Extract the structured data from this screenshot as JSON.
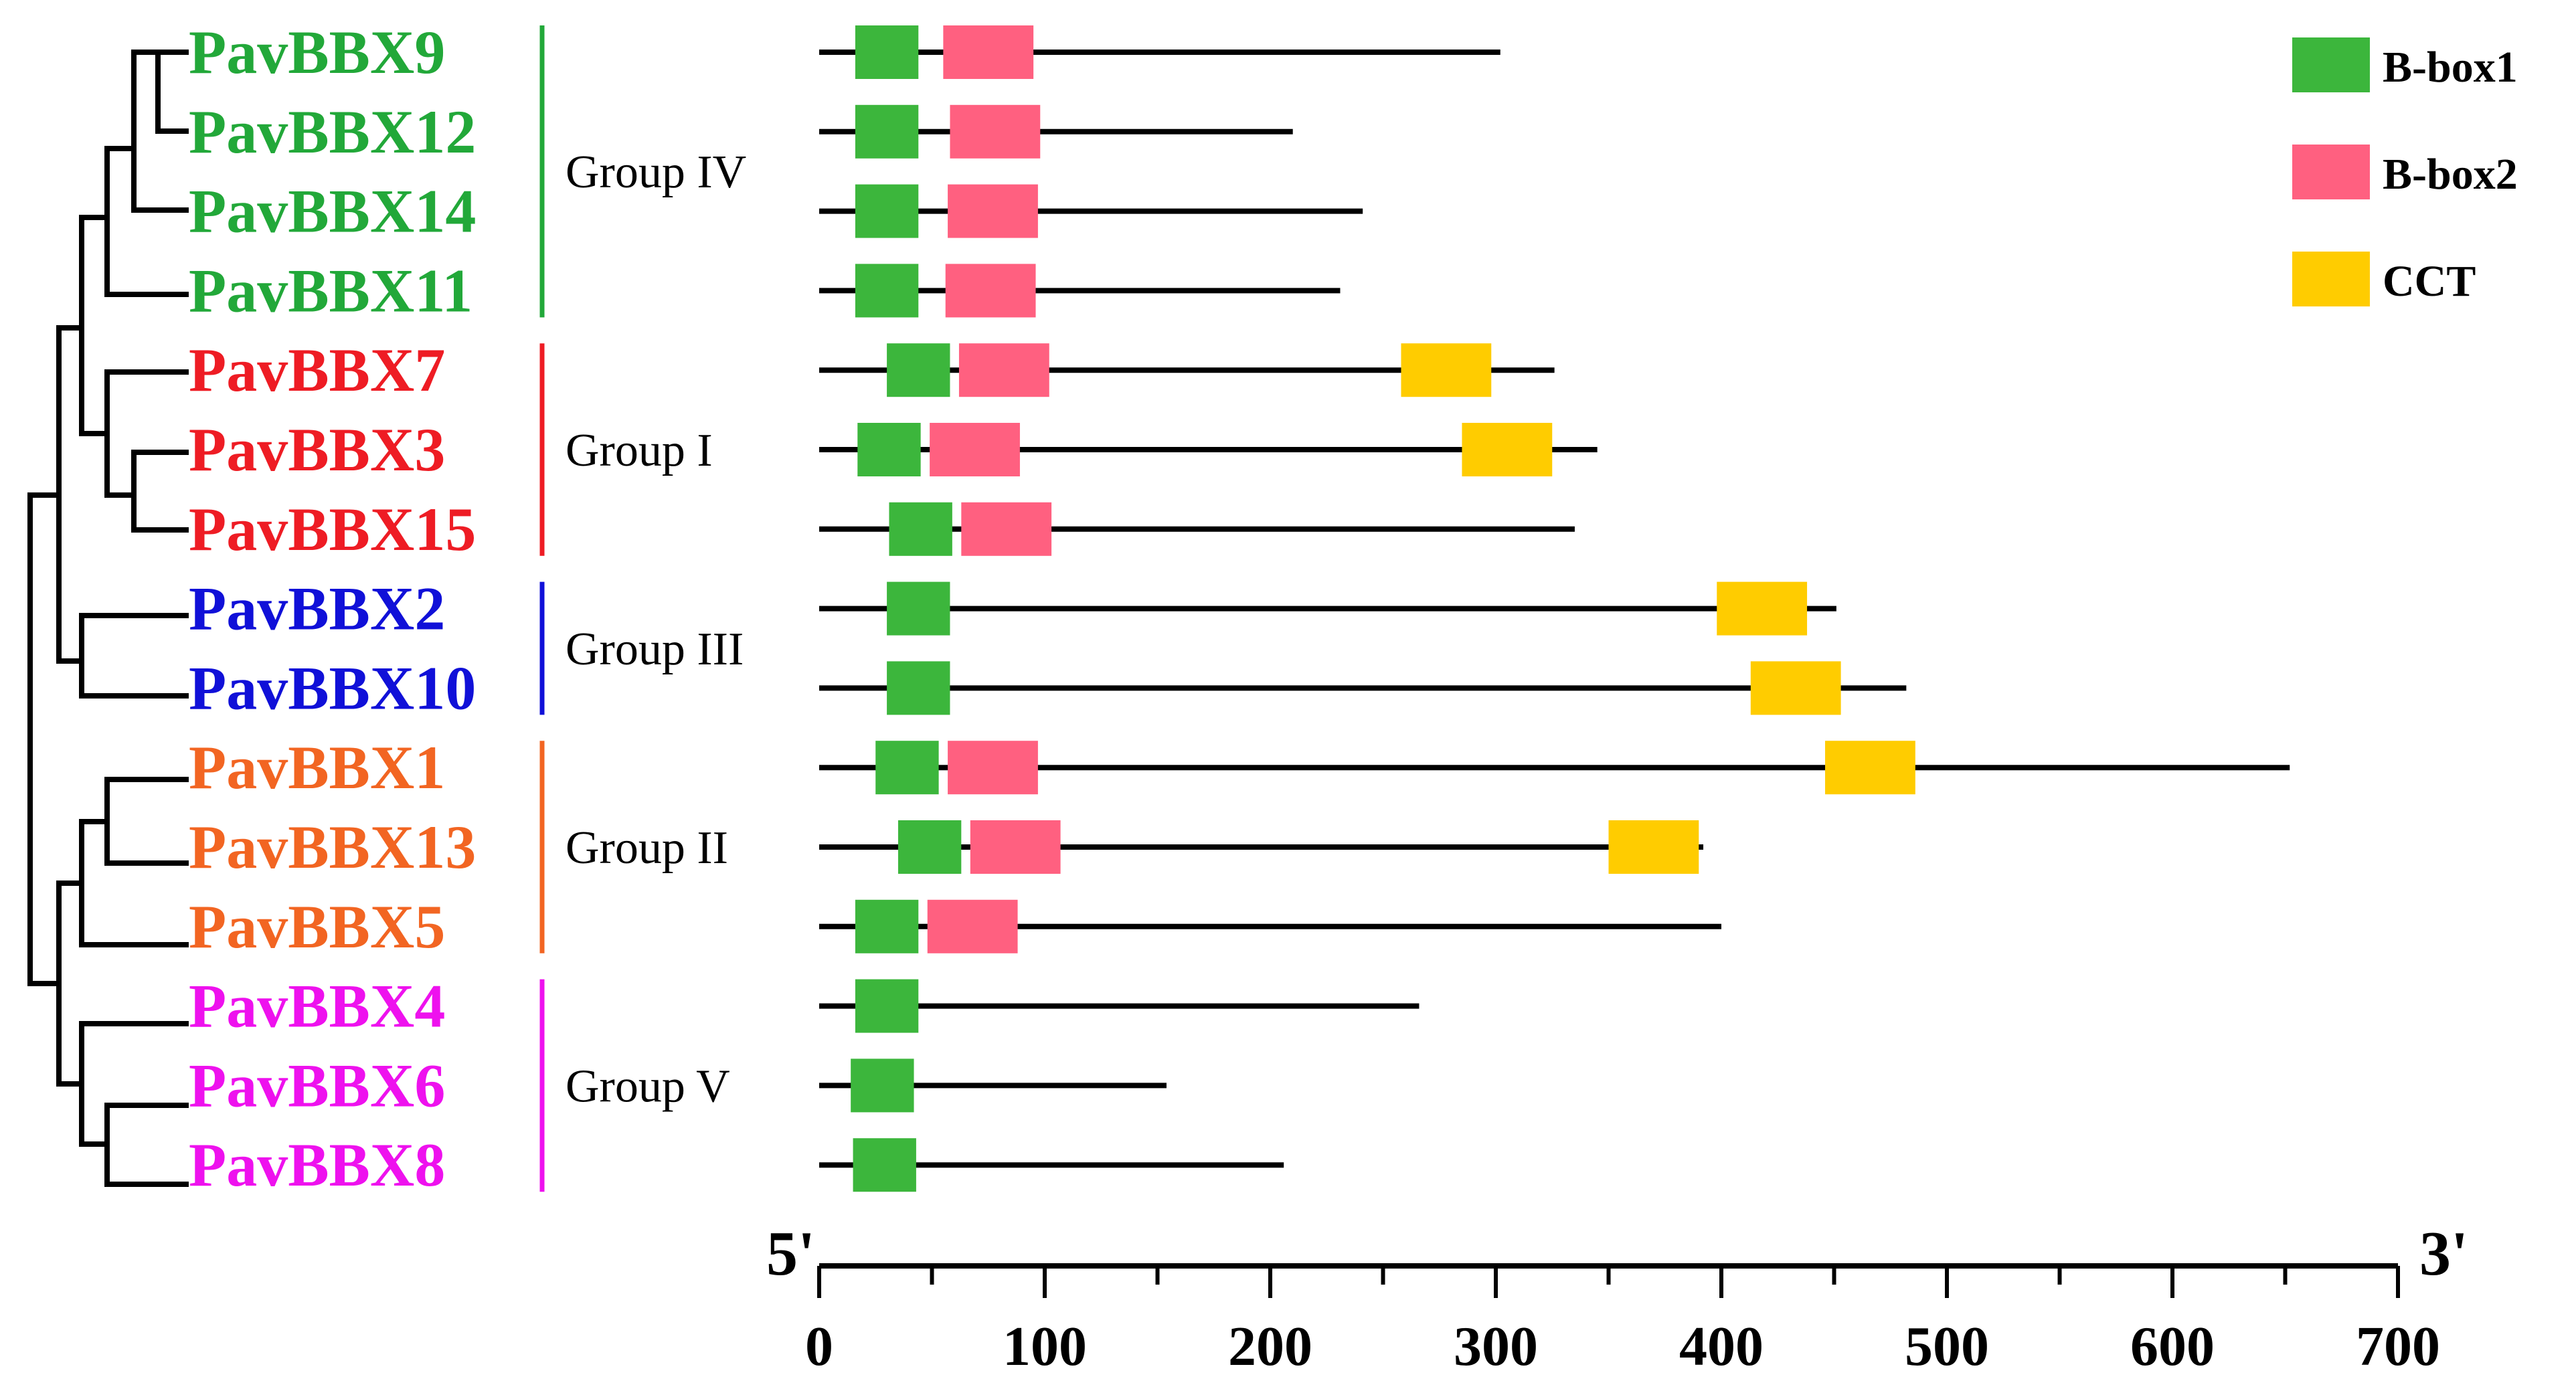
{
  "figure": {
    "title": "",
    "background": "#ffffff"
  },
  "groups": [
    {
      "name": "Group IV",
      "color": "#22a839",
      "members": [
        "PavBBX9",
        "PavBBX12",
        "PavBBX14",
        "PavBBX11"
      ]
    },
    {
      "name": "Group I",
      "color": "#ee1c24",
      "members": [
        "PavBBX7",
        "PavBBX3",
        "PavBBX15"
      ]
    },
    {
      "name": "Group III",
      "color": "#1010d8",
      "members": [
        "PavBBX2",
        "PavBBX10"
      ]
    },
    {
      "name": "Group II",
      "color": "#f26522",
      "members": [
        "PavBBX1",
        "PavBBX13",
        "PavBBX5"
      ]
    },
    {
      "name": "Group V",
      "color": "#ee11ee",
      "members": [
        "PavBBX4",
        "PavBBX6",
        "PavBBX8"
      ]
    }
  ],
  "legend": [
    {
      "label": "B-box1",
      "color": "#3cb63c"
    },
    {
      "label": "B-box2",
      "color": "#ff6080"
    },
    {
      "label": "CCT",
      "color": "#ffcc00"
    }
  ],
  "axis": {
    "start_label": "5'",
    "end_label": "3'",
    "min": 0,
    "max": 700,
    "major_ticks": [
      0,
      100,
      200,
      300,
      400,
      500,
      600,
      700
    ],
    "minor_step": 50
  },
  "chart_data": {
    "type": "gene-structure",
    "xlabel": "",
    "xlim": [
      0,
      700
    ],
    "domain_types": [
      "B-box1",
      "B-box2",
      "CCT"
    ],
    "proteins": [
      {
        "name": "PavBBX9",
        "group": "Group IV",
        "length": 302,
        "domains": [
          {
            "type": "B-box1",
            "start": 16,
            "end": 44
          },
          {
            "type": "B-box2",
            "start": 55,
            "end": 95
          }
        ]
      },
      {
        "name": "PavBBX12",
        "group": "Group IV",
        "length": 210,
        "domains": [
          {
            "type": "B-box1",
            "start": 16,
            "end": 44
          },
          {
            "type": "B-box2",
            "start": 58,
            "end": 98
          }
        ]
      },
      {
        "name": "PavBBX14",
        "group": "Group IV",
        "length": 241,
        "domains": [
          {
            "type": "B-box1",
            "start": 16,
            "end": 44
          },
          {
            "type": "B-box2",
            "start": 57,
            "end": 97
          }
        ]
      },
      {
        "name": "PavBBX11",
        "group": "Group IV",
        "length": 231,
        "domains": [
          {
            "type": "B-box1",
            "start": 16,
            "end": 44
          },
          {
            "type": "B-box2",
            "start": 56,
            "end": 96
          }
        ]
      },
      {
        "name": "PavBBX7",
        "group": "Group I",
        "length": 326,
        "domains": [
          {
            "type": "B-box1",
            "start": 30,
            "end": 58
          },
          {
            "type": "B-box2",
            "start": 62,
            "end": 102
          },
          {
            "type": "CCT",
            "start": 258,
            "end": 298
          }
        ]
      },
      {
        "name": "PavBBX3",
        "group": "Group I",
        "length": 345,
        "domains": [
          {
            "type": "B-box1",
            "start": 17,
            "end": 45
          },
          {
            "type": "B-box2",
            "start": 49,
            "end": 89
          },
          {
            "type": "CCT",
            "start": 285,
            "end": 325
          }
        ]
      },
      {
        "name": "PavBBX15",
        "group": "Group I",
        "length": 335,
        "domains": [
          {
            "type": "B-box1",
            "start": 31,
            "end": 59
          },
          {
            "type": "B-box2",
            "start": 63,
            "end": 103
          }
        ]
      },
      {
        "name": "PavBBX2",
        "group": "Group III",
        "length": 451,
        "domains": [
          {
            "type": "B-box1",
            "start": 30,
            "end": 58
          },
          {
            "type": "CCT",
            "start": 398,
            "end": 438
          }
        ]
      },
      {
        "name": "PavBBX10",
        "group": "Group III",
        "length": 482,
        "domains": [
          {
            "type": "B-box1",
            "start": 30,
            "end": 58
          },
          {
            "type": "CCT",
            "start": 413,
            "end": 453
          }
        ]
      },
      {
        "name": "PavBBX1",
        "group": "Group II",
        "length": 652,
        "domains": [
          {
            "type": "B-box1",
            "start": 25,
            "end": 53
          },
          {
            "type": "B-box2",
            "start": 57,
            "end": 97
          },
          {
            "type": "CCT",
            "start": 446,
            "end": 486
          }
        ]
      },
      {
        "name": "PavBBX13",
        "group": "Group II",
        "length": 392,
        "domains": [
          {
            "type": "B-box1",
            "start": 35,
            "end": 63
          },
          {
            "type": "B-box2",
            "start": 67,
            "end": 107
          },
          {
            "type": "CCT",
            "start": 350,
            "end": 390
          }
        ]
      },
      {
        "name": "PavBBX5",
        "group": "Group II",
        "length": 400,
        "domains": [
          {
            "type": "B-box1",
            "start": 16,
            "end": 44
          },
          {
            "type": "B-box2",
            "start": 48,
            "end": 88
          }
        ]
      },
      {
        "name": "PavBBX4",
        "group": "Group V",
        "length": 266,
        "domains": [
          {
            "type": "B-box1",
            "start": 16,
            "end": 44
          }
        ]
      },
      {
        "name": "PavBBX6",
        "group": "Group V",
        "length": 154,
        "domains": [
          {
            "type": "B-box1",
            "start": 14,
            "end": 42
          }
        ]
      },
      {
        "name": "PavBBX8",
        "group": "Group V",
        "length": 206,
        "domains": [
          {
            "type": "B-box1",
            "start": 15,
            "end": 43
          }
        ]
      }
    ]
  }
}
